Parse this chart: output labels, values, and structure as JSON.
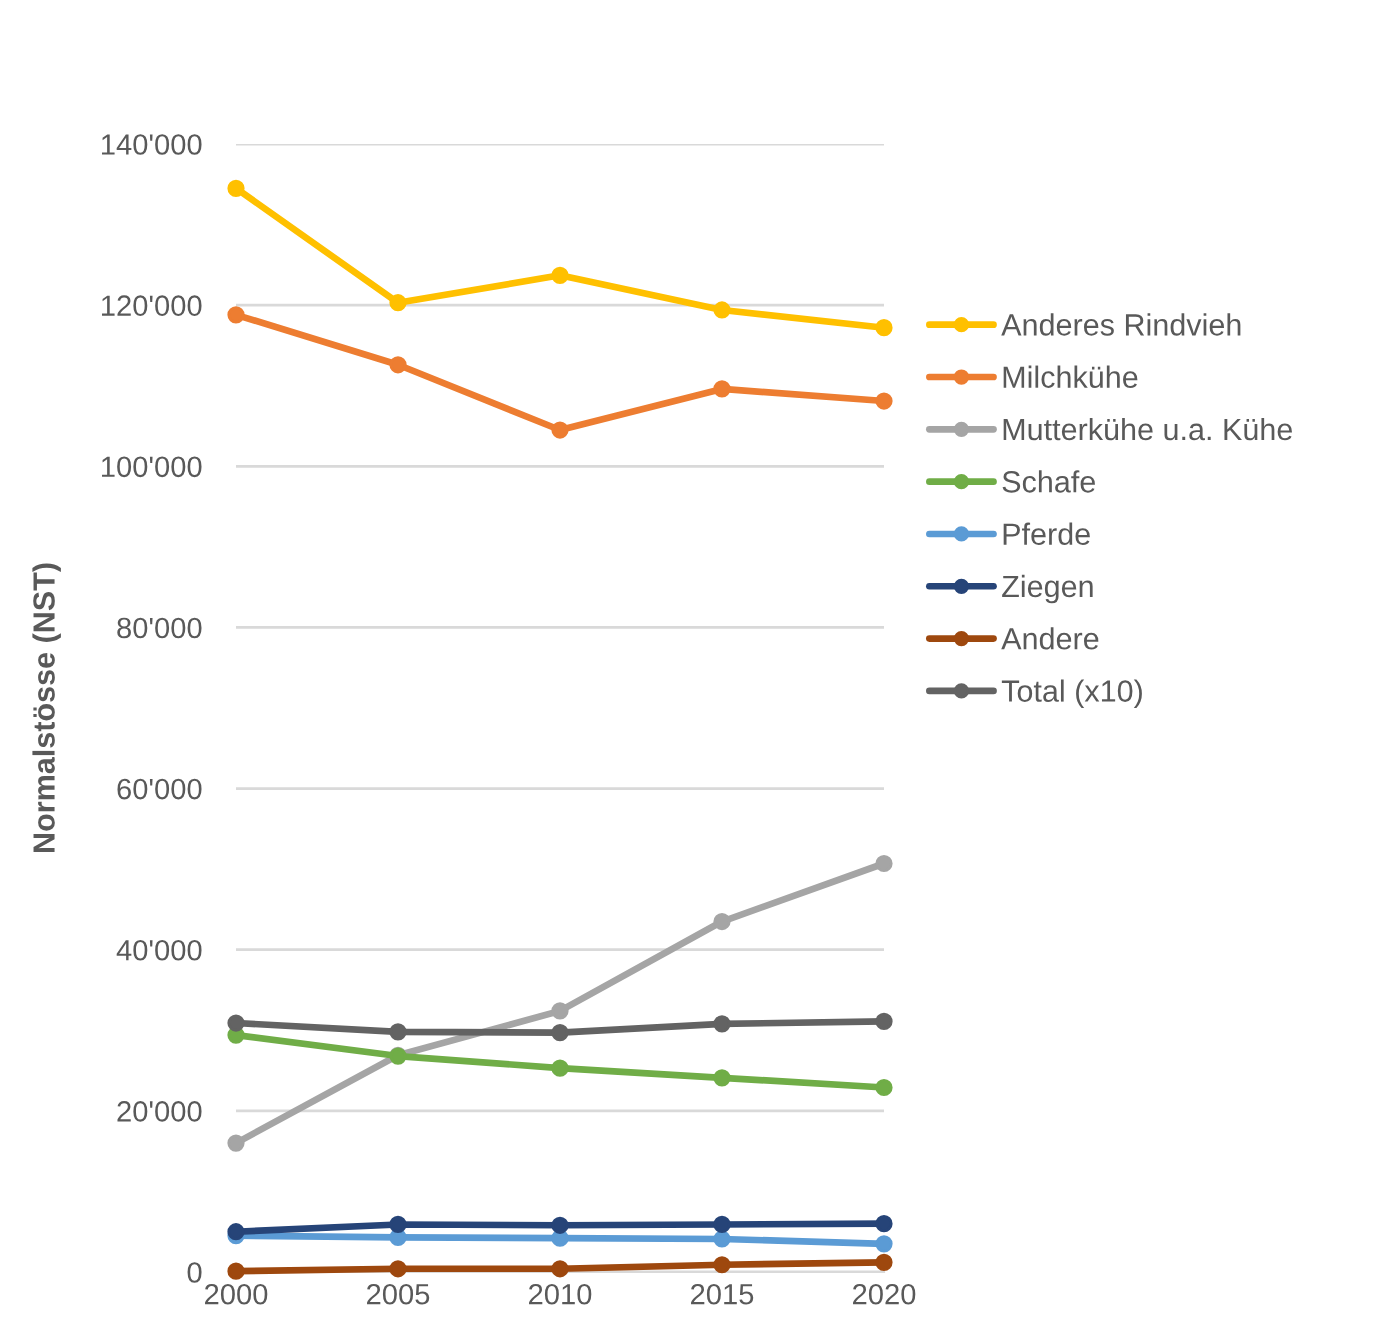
{
  "chart_data": {
    "type": "line",
    "ylabel": "Normalstösse (NST)",
    "categories": [
      "2000",
      "2005",
      "2010",
      "2015",
      "2020"
    ],
    "ylim": [
      0,
      140000
    ],
    "yticks": [
      0,
      {
        "value": 20000,
        "label": "20'000"
      },
      {
        "value": 40000,
        "label": "40'000"
      },
      {
        "value": 60000,
        "label": "60'000"
      },
      {
        "value": 80000,
        "label": "80'000"
      },
      {
        "value": 100000,
        "label": "100'000"
      },
      {
        "value": 120000,
        "label": "120'000"
      },
      {
        "value": 140000,
        "label": "140'000"
      }
    ],
    "grid": "y",
    "legend": "right",
    "marker": "circle",
    "line_style": "solid",
    "series": [
      {
        "name": "Anderes Rindvieh",
        "color": "#ffc000",
        "values": [
          134500,
          120300,
          123700,
          119400,
          117200
        ]
      },
      {
        "name": "Milchkühe",
        "color": "#ed7d31",
        "values": [
          118800,
          112600,
          104500,
          109600,
          108100
        ]
      },
      {
        "name": "Mutterkühe u.a. Kühe",
        "color": "#a5a5a5",
        "values": [
          16000,
          26900,
          32400,
          43500,
          50700
        ]
      },
      {
        "name": "Schafe",
        "color": "#70ad47",
        "values": [
          29400,
          26800,
          25300,
          24100,
          22900
        ]
      },
      {
        "name": "Pferde",
        "color": "#5b9bd5",
        "values": [
          4500,
          4300,
          4200,
          4100,
          3500
        ]
      },
      {
        "name": "Ziegen",
        "color": "#264478",
        "values": [
          5000,
          5900,
          5800,
          5900,
          6000
        ]
      },
      {
        "name": "Andere",
        "color": "#9e480e",
        "values": [
          100,
          400,
          400,
          900,
          1200
        ]
      },
      {
        "name": "Total (x10)",
        "color": "#636363",
        "values": [
          30900,
          29800,
          29700,
          30800,
          31100
        ]
      }
    ]
  }
}
